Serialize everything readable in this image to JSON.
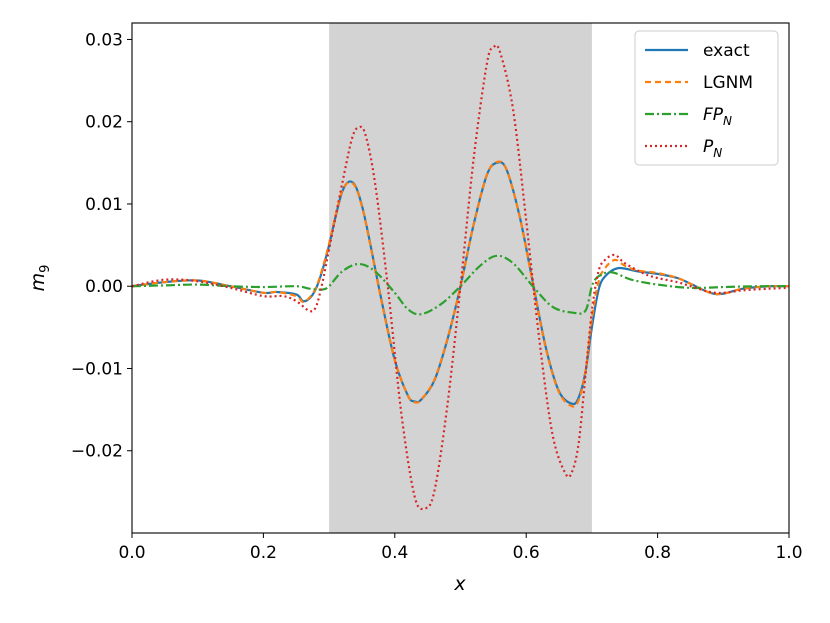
{
  "chart_data": {
    "type": "line",
    "xlabel": "x",
    "ylabel": "m",
    "ylabel_sub": "9",
    "xlim": [
      0.0,
      1.0
    ],
    "ylim": [
      -0.03,
      0.032
    ],
    "xticks": [
      0.0,
      0.2,
      0.4,
      0.6,
      0.8,
      1.0
    ],
    "xtick_labels": [
      "0.0",
      "0.2",
      "0.4",
      "0.6",
      "0.8",
      "1.0"
    ],
    "yticks": [
      -0.02,
      -0.01,
      0.0,
      0.01,
      0.02,
      0.03
    ],
    "ytick_labels": [
      "−0.02",
      "−0.01",
      "0.00",
      "0.01",
      "0.02",
      "0.03"
    ],
    "shaded_region": {
      "x": [
        0.3,
        0.7
      ],
      "color": "#d3d3d3"
    },
    "grid": false,
    "legend_position": "top-right",
    "series": [
      {
        "name": "exact",
        "label_main": "exact",
        "label_sub": "",
        "color": "#1f77b4",
        "dash": "solid",
        "points": [
          [
            0,
            0
          ],
          [
            0.05,
            0.0005
          ],
          [
            0.1,
            0.0007
          ],
          [
            0.15,
            0.0
          ],
          [
            0.2,
            -0.0008
          ],
          [
            0.22,
            -0.0007
          ],
          [
            0.25,
            -0.001
          ],
          [
            0.26,
            -0.0018
          ],
          [
            0.27,
            -0.0015
          ],
          [
            0.28,
            -0.0003
          ],
          [
            0.29,
            0.002
          ],
          [
            0.3,
            0.005
          ],
          [
            0.31,
            0.0085
          ],
          [
            0.32,
            0.0115
          ],
          [
            0.33,
            0.0127
          ],
          [
            0.34,
            0.0122
          ],
          [
            0.35,
            0.0098
          ],
          [
            0.36,
            0.0062
          ],
          [
            0.38,
            -0.0018
          ],
          [
            0.4,
            -0.009
          ],
          [
            0.42,
            -0.0133
          ],
          [
            0.43,
            -0.014
          ],
          [
            0.44,
            -0.0138
          ],
          [
            0.46,
            -0.0115
          ],
          [
            0.48,
            -0.0065
          ],
          [
            0.5,
            0.0
          ],
          [
            0.52,
            0.0075
          ],
          [
            0.54,
            0.0135
          ],
          [
            0.555,
            0.015
          ],
          [
            0.57,
            0.0142
          ],
          [
            0.59,
            0.0085
          ],
          [
            0.61,
            0.0005
          ],
          [
            0.63,
            -0.0075
          ],
          [
            0.65,
            -0.0128
          ],
          [
            0.67,
            -0.0143
          ],
          [
            0.68,
            -0.0135
          ],
          [
            0.69,
            -0.0105
          ],
          [
            0.7,
            -0.005
          ],
          [
            0.71,
            -0.0005
          ],
          [
            0.72,
            0.0012
          ],
          [
            0.74,
            0.0022
          ],
          [
            0.77,
            0.0018
          ],
          [
            0.8,
            0.0015
          ],
          [
            0.83,
            0.001
          ],
          [
            0.85,
            0.0003
          ],
          [
            0.88,
            -0.0008
          ],
          [
            0.9,
            -0.0009
          ],
          [
            0.93,
            -0.0003
          ],
          [
            0.97,
            0.0
          ],
          [
            1.0,
            0.0
          ]
        ]
      },
      {
        "name": "LGNM",
        "label_main": "LGNM",
        "label_sub": "",
        "color": "#ff7f0e",
        "dash": "6,4",
        "points": [
          [
            0,
            0
          ],
          [
            0.05,
            0.0005
          ],
          [
            0.1,
            0.0007
          ],
          [
            0.15,
            0.0
          ],
          [
            0.2,
            -0.0008
          ],
          [
            0.22,
            -0.0007
          ],
          [
            0.25,
            -0.0012
          ],
          [
            0.26,
            -0.0019
          ],
          [
            0.27,
            -0.0014
          ],
          [
            0.28,
            -0.0002
          ],
          [
            0.29,
            0.0022
          ],
          [
            0.3,
            0.0052
          ],
          [
            0.31,
            0.0087
          ],
          [
            0.32,
            0.0116
          ],
          [
            0.33,
            0.0126
          ],
          [
            0.34,
            0.0121
          ],
          [
            0.35,
            0.0097
          ],
          [
            0.36,
            0.0061
          ],
          [
            0.38,
            -0.0019
          ],
          [
            0.4,
            -0.009
          ],
          [
            0.42,
            -0.0133
          ],
          [
            0.43,
            -0.0141
          ],
          [
            0.44,
            -0.0138
          ],
          [
            0.46,
            -0.0114
          ],
          [
            0.48,
            -0.0064
          ],
          [
            0.5,
            0.0
          ],
          [
            0.52,
            0.0075
          ],
          [
            0.54,
            0.0135
          ],
          [
            0.555,
            0.0151
          ],
          [
            0.57,
            0.0142
          ],
          [
            0.59,
            0.0085
          ],
          [
            0.61,
            0.0004
          ],
          [
            0.63,
            -0.0076
          ],
          [
            0.65,
            -0.0129
          ],
          [
            0.67,
            -0.0146
          ],
          [
            0.68,
            -0.0138
          ],
          [
            0.69,
            -0.0105
          ],
          [
            0.7,
            -0.004
          ],
          [
            0.71,
            0.0005
          ],
          [
            0.72,
            0.0022
          ],
          [
            0.735,
            0.0032
          ],
          [
            0.75,
            0.0025
          ],
          [
            0.77,
            0.0019
          ],
          [
            0.8,
            0.0016
          ],
          [
            0.83,
            0.001
          ],
          [
            0.85,
            0.0003
          ],
          [
            0.88,
            -0.0008
          ],
          [
            0.9,
            -0.0009
          ],
          [
            0.93,
            -0.0003
          ],
          [
            0.97,
            0.0
          ],
          [
            1.0,
            0.0
          ]
        ]
      },
      {
        "name": "FP_N",
        "label_main": "FP",
        "label_sub": "N",
        "color": "#2ca02c",
        "dash": "9,3,2,3",
        "points": [
          [
            0,
            0
          ],
          [
            0.05,
            0.0001
          ],
          [
            0.1,
            0.0002
          ],
          [
            0.15,
            0.0
          ],
          [
            0.2,
            -0.0001
          ],
          [
            0.25,
            0.0
          ],
          [
            0.27,
            -0.0003
          ],
          [
            0.29,
            -0.0004
          ],
          [
            0.3,
            0.0
          ],
          [
            0.32,
            0.0018
          ],
          [
            0.345,
            0.0027
          ],
          [
            0.37,
            0.0018
          ],
          [
            0.4,
            -0.0008
          ],
          [
            0.42,
            -0.0028
          ],
          [
            0.44,
            -0.0034
          ],
          [
            0.47,
            -0.0022
          ],
          [
            0.5,
            0.0
          ],
          [
            0.53,
            0.0025
          ],
          [
            0.555,
            0.0037
          ],
          [
            0.58,
            0.0028
          ],
          [
            0.61,
            0.0
          ],
          [
            0.64,
            -0.0025
          ],
          [
            0.67,
            -0.0032
          ],
          [
            0.69,
            -0.003
          ],
          [
            0.7,
            0.0
          ],
          [
            0.71,
            0.0012
          ],
          [
            0.73,
            0.0017
          ],
          [
            0.76,
            0.0008
          ],
          [
            0.8,
            0.0002
          ],
          [
            0.85,
            -0.0002
          ],
          [
            0.9,
            -0.0001
          ],
          [
            0.95,
            0.0
          ],
          [
            1.0,
            0.0
          ]
        ]
      },
      {
        "name": "P_N",
        "label_main": "P",
        "label_sub": "N",
        "color": "#d62728",
        "dash": "2,3",
        "points": [
          [
            0,
            0
          ],
          [
            0.05,
            0.0008
          ],
          [
            0.1,
            0.0006
          ],
          [
            0.15,
            -0.0002
          ],
          [
            0.2,
            -0.0012
          ],
          [
            0.23,
            -0.0012
          ],
          [
            0.25,
            -0.0018
          ],
          [
            0.27,
            -0.003
          ],
          [
            0.28,
            -0.0025
          ],
          [
            0.29,
            0.0005
          ],
          [
            0.3,
            0.0045
          ],
          [
            0.32,
            0.0125
          ],
          [
            0.335,
            0.018
          ],
          [
            0.345,
            0.0193
          ],
          [
            0.355,
            0.0185
          ],
          [
            0.37,
            0.0125
          ],
          [
            0.39,
            -0.0005
          ],
          [
            0.41,
            -0.0155
          ],
          [
            0.43,
            -0.0255
          ],
          [
            0.445,
            -0.027
          ],
          [
            0.46,
            -0.025
          ],
          [
            0.48,
            -0.0145
          ],
          [
            0.5,
            0.0
          ],
          [
            0.52,
            0.0155
          ],
          [
            0.54,
            0.027
          ],
          [
            0.55,
            0.029
          ],
          [
            0.56,
            0.0285
          ],
          [
            0.58,
            0.0215
          ],
          [
            0.6,
            0.008
          ],
          [
            0.62,
            -0.0065
          ],
          [
            0.64,
            -0.018
          ],
          [
            0.66,
            -0.0228
          ],
          [
            0.67,
            -0.0225
          ],
          [
            0.68,
            -0.019
          ],
          [
            0.69,
            -0.011
          ],
          [
            0.7,
            -0.003
          ],
          [
            0.71,
            0.0018
          ],
          [
            0.72,
            0.0032
          ],
          [
            0.735,
            0.0038
          ],
          [
            0.75,
            0.0028
          ],
          [
            0.78,
            0.0015
          ],
          [
            0.8,
            0.001
          ],
          [
            0.83,
            0.0005
          ],
          [
            0.85,
            0.0
          ],
          [
            0.88,
            -0.0007
          ],
          [
            0.9,
            -0.0008
          ],
          [
            0.93,
            -0.0005
          ],
          [
            0.97,
            -0.0003
          ],
          [
            1.0,
            -0.0002
          ]
        ]
      }
    ]
  }
}
